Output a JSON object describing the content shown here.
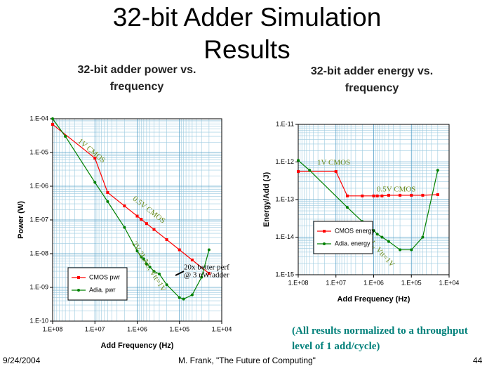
{
  "slide": {
    "title": "32-bit Adder Simulation Results",
    "note": "(All results normalized to a throughput level of 1 add/cycle)",
    "footer": {
      "date": "9/24/2004",
      "author": "M. Frank, \"The Future of Computing\"",
      "page": "44"
    }
  },
  "chart_data": [
    {
      "type": "line",
      "title": "32-bit adder power vs. frequency",
      "x_label": "Add Frequency  (Hz)",
      "y_label": "Power (W)",
      "log_x": true,
      "log_y": true,
      "grid": true,
      "legend": "lower left",
      "xlim": [
        100000000,
        10000
      ],
      "ylim": [
        1e-10,
        0.0001
      ],
      "xticks": [
        {
          "value": 100000000,
          "label": "1.E+08"
        },
        {
          "value": 10000000,
          "label": "1.E+07"
        },
        {
          "value": 1000000,
          "label": "1.E+06"
        },
        {
          "value": 100000,
          "label": "1.E+05"
        },
        {
          "value": 10000,
          "label": "1.E+04"
        }
      ],
      "yticks": [
        {
          "value": 1e-10,
          "label": "1.E-10"
        },
        {
          "value": 1e-09,
          "label": "1.E-09"
        },
        {
          "value": 1e-08,
          "label": "1.E-08"
        },
        {
          "value": 1e-07,
          "label": "1.E-07"
        },
        {
          "value": 1e-06,
          "label": "1.E-06"
        },
        {
          "value": 1e-05,
          "label": "1.E-05"
        },
        {
          "value": 0.0001,
          "label": "1.E-04"
        }
      ],
      "series": [
        {
          "name": "CMOS pwr",
          "color": "#ff0000",
          "marker": "square",
          "x": [
            100000000,
            10000000,
            5000000,
            2000000,
            1000000,
            800000,
            600000,
            400000,
            200000,
            100000,
            50000,
            20000
          ],
          "values": [
            6.8e-05,
            6.8e-06,
            6.5e-07,
            2.6e-07,
            1.3e-07,
            1.04e-07,
            7.8e-08,
            5.2e-08,
            2.6e-08,
            1.3e-08,
            6.5e-09,
            2.6e-09
          ]
        },
        {
          "name": "Adia. pwr",
          "color": "#008000",
          "marker": "circle",
          "x": [
            100000000,
            50000000,
            10000000,
            5000000,
            2000000,
            1000000,
            800000,
            700000,
            600000,
            500000,
            400000,
            300000,
            200000,
            100000,
            80000,
            50000,
            30000,
            20000
          ],
          "values": [
            0.0001,
            3e-05,
            1.3e-06,
            3.5e-07,
            6e-08,
            1.2e-08,
            8e-09,
            7e-09,
            5e-09,
            4e-09,
            3e-09,
            2.5e-09,
            1.2e-09,
            5e-10,
            4.5e-10,
            6e-10,
            2e-09,
            1.3e-08
          ]
        }
      ],
      "annotations": [
        "1V CMOS",
        "0.5V CMOS",
        "2V 2LAL, Vtt=1V",
        "20x better perf",
        "@ 3 nW/adder"
      ]
    },
    {
      "type": "line",
      "title": "32-bit adder energy vs. frequency",
      "x_label": "Add Frequency  (Hz)",
      "y_label": "Energy/Add (J)",
      "log_x": true,
      "log_y": true,
      "grid": true,
      "legend": "lower left",
      "xlim": [
        100000000,
        10000
      ],
      "ylim": [
        1e-15,
        1e-11
      ],
      "xticks": [
        {
          "value": 100000000,
          "label": "1.E+08"
        },
        {
          "value": 10000000,
          "label": "1.E+07"
        },
        {
          "value": 1000000,
          "label": "1.E+06"
        },
        {
          "value": 100000,
          "label": "1.E+05"
        },
        {
          "value": 10000,
          "label": "1.E+04"
        }
      ],
      "yticks": [
        {
          "value": 1e-15,
          "label": "1.E-15"
        },
        {
          "value": 1e-14,
          "label": "1.E-14"
        },
        {
          "value": 1e-13,
          "label": "1.E-13"
        },
        {
          "value": 1e-12,
          "label": "1.E-12"
        },
        {
          "value": 1e-11,
          "label": "1.E-11"
        }
      ],
      "series": [
        {
          "name": "CMOS energy",
          "color": "#ff0000",
          "marker": "square",
          "x": [
            100000000,
            10000000,
            5000000,
            2000000,
            1000000,
            800000,
            600000,
            400000,
            200000,
            100000,
            50000,
            20000
          ],
          "values": [
            5.6e-13,
            5.6e-13,
            1.25e-13,
            1.25e-13,
            1.25e-13,
            1.25e-13,
            1.25e-13,
            1.3e-13,
            1.3e-13,
            1.3e-13,
            1.3e-13,
            1.35e-13
          ]
        },
        {
          "name": "Adia. energy",
          "color": "#008000",
          "marker": "circle",
          "x": [
            100000000,
            50000000,
            5000000,
            2000000,
            1000000,
            800000,
            600000,
            400000,
            200000,
            100000,
            50000,
            20000
          ],
          "values": [
            1.1e-12,
            6e-13,
            6.2e-14,
            2.6e-14,
            1.5e-14,
            1.2e-14,
            1e-14,
            7.7e-15,
            4.6e-15,
            4.6e-15,
            1e-14,
            6e-13
          ]
        }
      ],
      "annotations": [
        "1V CMOS",
        "0.5V CMOS",
        "2V 2LAL, Vtt=1V"
      ]
    }
  ]
}
